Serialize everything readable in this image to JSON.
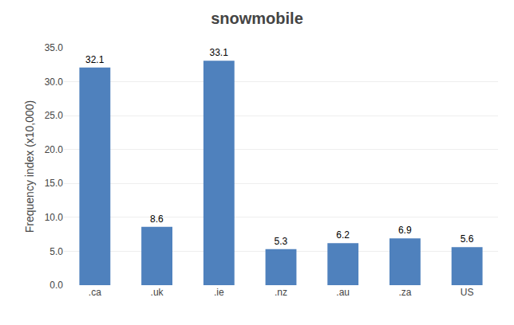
{
  "chart_data": {
    "type": "bar",
    "title": "snowmobile",
    "ylabel": "Frequency index (x10,000)",
    "categories": [
      ".ca",
      ".uk",
      ".ie",
      ".nz",
      ".au",
      ".za",
      "US"
    ],
    "values": [
      32.1,
      8.6,
      33.1,
      5.3,
      6.2,
      6.9,
      5.6
    ],
    "color": "#4F81BD",
    "ylim": [
      0,
      35.0
    ],
    "yticks": [
      {
        "value": 0.0,
        "label": "0.0"
      },
      {
        "value": 5.0,
        "label": "5.0"
      },
      {
        "value": 10.0,
        "label": "10.0"
      },
      {
        "value": 15.0,
        "label": "15.0"
      },
      {
        "value": 20.0,
        "label": "20.0"
      },
      {
        "value": 25.0,
        "label": "25.0"
      },
      {
        "value": 30.0,
        "label": "30.0"
      },
      {
        "value": 35.0,
        "label": "35.0"
      }
    ],
    "grid": true,
    "data_labels": true
  }
}
